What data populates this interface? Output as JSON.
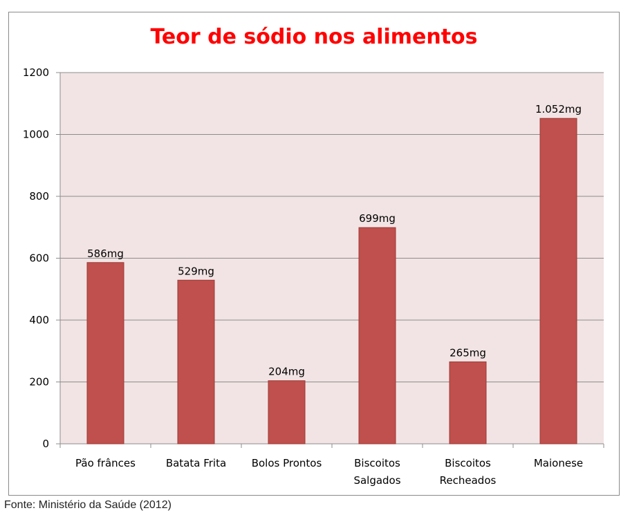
{
  "chart_data": {
    "type": "bar",
    "title": "Teor de sódio nos alimentos",
    "categories": [
      [
        "Pão frânces"
      ],
      [
        "Batata Frita"
      ],
      [
        "Bolos Prontos"
      ],
      [
        "Biscoitos",
        "Salgados"
      ],
      [
        "Biscoitos",
        "Recheados"
      ],
      [
        "Maionese"
      ]
    ],
    "values": [
      586,
      529,
      204,
      699,
      265,
      1052
    ],
    "data_labels": [
      "586mg",
      "529mg",
      "204mg",
      "699mg",
      "265mg",
      "1.052mg"
    ],
    "ylim": [
      0,
      1200
    ],
    "yticks": [
      0,
      200,
      400,
      600,
      800,
      1000,
      1200
    ],
    "grid": true,
    "legend": "none",
    "colors": {
      "bar_fill": "#c0504d",
      "bar_stroke": "#9c3a37",
      "plot_background": "#f2e4e4",
      "gridline": "#8c8c8c",
      "title": "#ff0000"
    }
  },
  "source": "Fonte: Ministério da Saúde (2012)"
}
